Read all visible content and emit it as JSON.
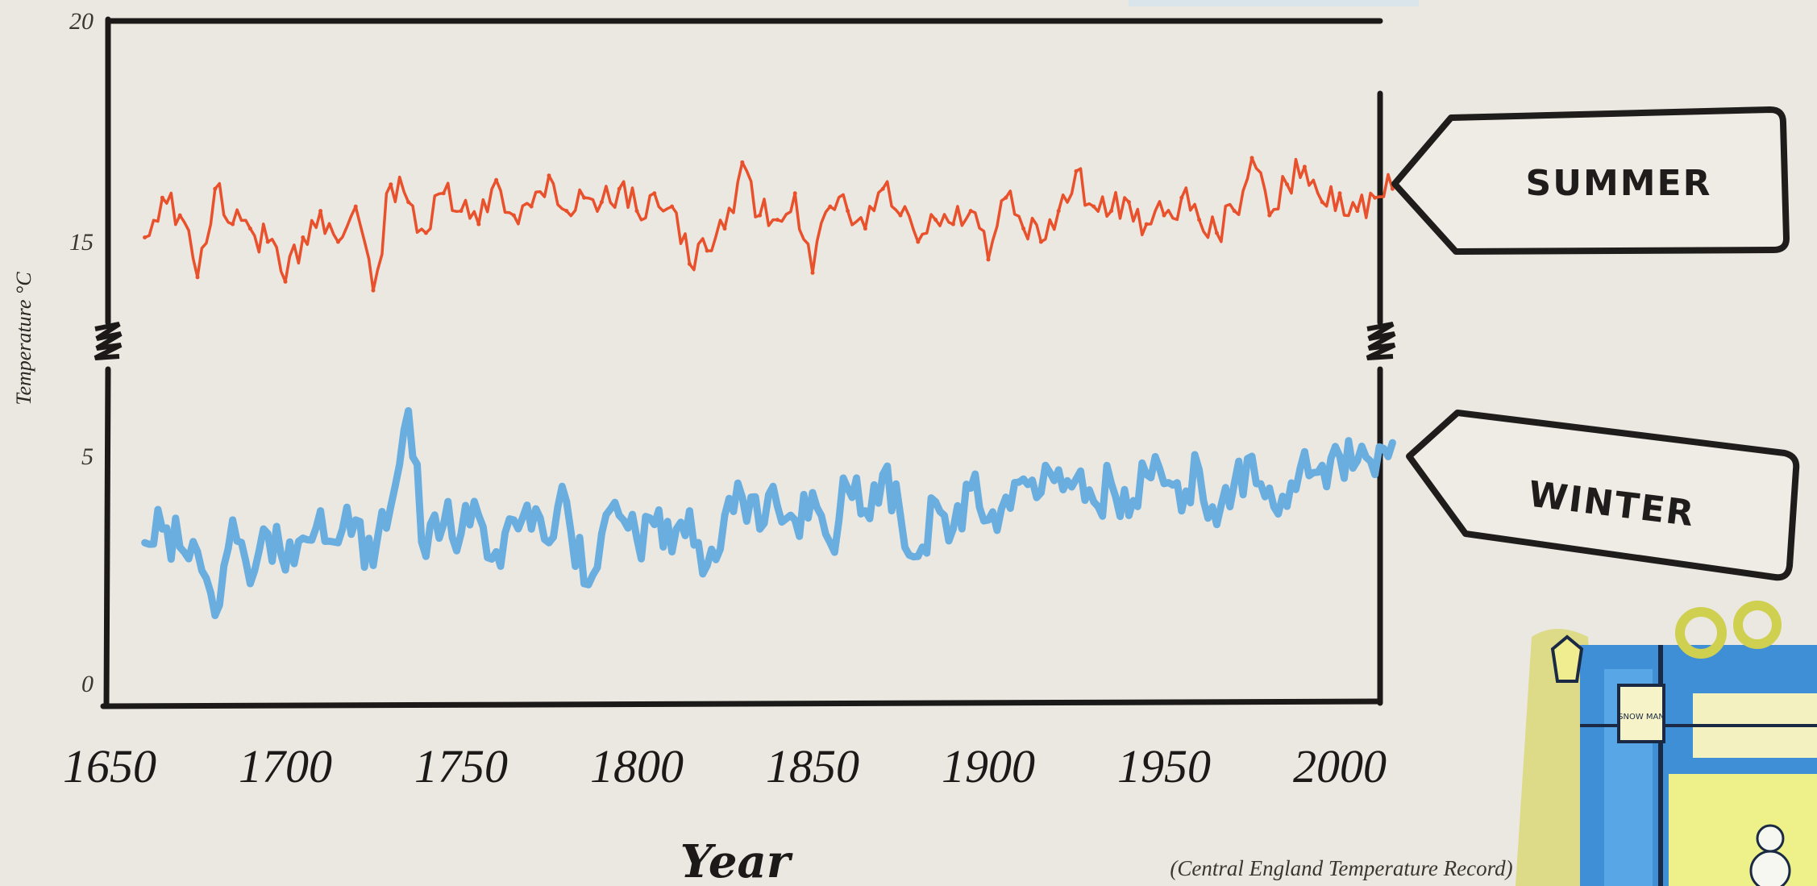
{
  "chart_data": {
    "type": "line",
    "title": "",
    "xlabel": "Year",
    "ylabel": "Temperature °C",
    "source_note": "(Central England Temperature Record)",
    "xlim": [
      1650,
      2020
    ],
    "ylim": [
      0,
      20
    ],
    "x_ticks": [
      "1650",
      "1700",
      "1750",
      "1800",
      "1850",
      "1900",
      "1950",
      "2000"
    ],
    "y_ticks": [
      "0",
      "5",
      "15",
      "20"
    ],
    "axis_break": "between 5 and 15 (zigzag break marks on both vertical axes)",
    "grid": false,
    "legend": "right-side tag labels",
    "series": [
      {
        "name": "SUMMER",
        "color": "#e8512b",
        "x": [
          1660,
          1665,
          1670,
          1675,
          1680,
          1685,
          1690,
          1695,
          1700,
          1705,
          1710,
          1715,
          1720,
          1725,
          1730,
          1735,
          1740,
          1745,
          1750,
          1755,
          1760,
          1765,
          1770,
          1775,
          1780,
          1785,
          1790,
          1795,
          1800,
          1805,
          1810,
          1815,
          1820,
          1825,
          1830,
          1835,
          1840,
          1845,
          1850,
          1855,
          1860,
          1865,
          1870,
          1875,
          1880,
          1885,
          1890,
          1895,
          1900,
          1905,
          1910,
          1915,
          1920,
          1925,
          1930,
          1935,
          1940,
          1945,
          1950,
          1955,
          1960,
          1965,
          1970,
          1975,
          1980,
          1985,
          1990,
          1995,
          2000,
          2005,
          2010,
          2015
        ],
        "values": [
          15.1,
          16.0,
          15.6,
          14.2,
          16.2,
          15.4,
          15.3,
          15.0,
          14.1,
          15.1,
          15.7,
          15.0,
          15.8,
          13.9,
          16.3,
          15.9,
          15.2,
          16.1,
          15.7,
          15.4,
          16.4,
          15.6,
          15.8,
          16.5,
          15.7,
          16.0,
          15.9,
          16.2,
          15.7,
          16.1,
          15.8,
          14.5,
          14.8,
          15.3,
          16.8,
          15.6,
          15.5,
          16.1,
          14.3,
          15.8,
          15.7,
          15.3,
          16.2,
          15.6,
          15.0,
          15.5,
          15.4,
          15.7,
          14.6,
          16.0,
          15.3,
          15.0,
          15.7,
          16.6,
          15.8,
          15.7,
          15.9,
          15.4,
          15.6,
          16.0,
          15.5,
          15.2,
          15.7,
          16.9,
          15.6,
          16.3,
          16.7,
          15.9,
          16.1,
          15.7,
          16.0,
          16.2
        ]
      },
      {
        "name": "WINTER",
        "color": "#6aaee0",
        "x": [
          1660,
          1665,
          1670,
          1675,
          1680,
          1685,
          1690,
          1695,
          1700,
          1705,
          1710,
          1715,
          1720,
          1725,
          1730,
          1735,
          1740,
          1745,
          1750,
          1755,
          1760,
          1765,
          1770,
          1775,
          1780,
          1785,
          1790,
          1795,
          1800,
          1805,
          1810,
          1815,
          1820,
          1825,
          1830,
          1835,
          1840,
          1845,
          1850,
          1855,
          1860,
          1865,
          1870,
          1875,
          1880,
          1885,
          1890,
          1895,
          1900,
          1905,
          1910,
          1915,
          1920,
          1925,
          1930,
          1935,
          1940,
          1945,
          1950,
          1955,
          1960,
          1965,
          1970,
          1975,
          1980,
          1985,
          1990,
          1995,
          2000,
          2005,
          2010,
          2015
        ],
        "values": [
          3.1,
          3.4,
          3.0,
          2.9,
          1.5,
          3.6,
          2.2,
          3.3,
          2.5,
          3.2,
          3.8,
          3.1,
          3.6,
          2.6,
          3.9,
          6.0,
          2.8,
          3.5,
          3.3,
          3.7,
          2.9,
          3.6,
          3.4,
          3.1,
          4.0,
          2.2,
          3.3,
          3.7,
          3.2,
          3.5,
          2.9,
          3.8,
          2.6,
          3.7,
          4.1,
          3.4,
          3.9,
          3.6,
          4.2,
          3.1,
          4.3,
          3.8,
          4.6,
          3.7,
          2.8,
          4.0,
          3.4,
          4.3,
          3.6,
          4.1,
          4.5,
          4.2,
          4.7,
          4.5,
          4.0,
          4.4,
          3.7,
          4.6,
          4.4,
          3.8,
          4.7,
          3.5,
          4.4,
          5.0,
          4.3,
          3.9,
          5.1,
          4.8,
          5.0,
          4.9,
          4.6,
          5.3
        ]
      }
    ]
  },
  "tags": {
    "summer": "SUMMER",
    "winter": "WINTER"
  },
  "illustration": {
    "sign_text": "SNOW MAN"
  },
  "colors": {
    "background": "#ebe8e2",
    "frame": "#1c1a18",
    "summer": "#e8512b",
    "winter": "#6aaee0"
  }
}
